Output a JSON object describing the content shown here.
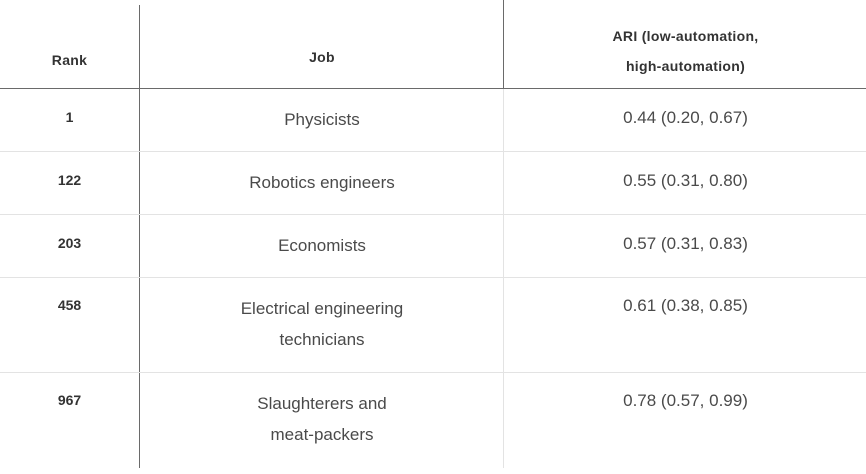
{
  "table": {
    "headers": {
      "rank": "Rank",
      "job": "Job",
      "ari_line1": "ARI (low-automation,",
      "ari_line2": "high-automation)"
    },
    "rows": [
      {
        "rank": "1",
        "job_line1": "Physicists",
        "job_line2": "",
        "ari": "0.44 (0.20, 0.67)"
      },
      {
        "rank": "122",
        "job_line1": "Robotics engineers",
        "job_line2": "",
        "ari": "0.55 (0.31, 0.80)"
      },
      {
        "rank": "203",
        "job_line1": "Economists",
        "job_line2": "",
        "ari": "0.57 (0.31, 0.83)"
      },
      {
        "rank": "458",
        "job_line1": "Electrical engineering",
        "job_line2": "technicians",
        "ari": "0.61 (0.38, 0.85)"
      },
      {
        "rank": "967",
        "job_line1": "Slaughterers and",
        "job_line2": "meat-packers",
        "ari": "0.78 (0.57, 0.99)"
      }
    ]
  }
}
